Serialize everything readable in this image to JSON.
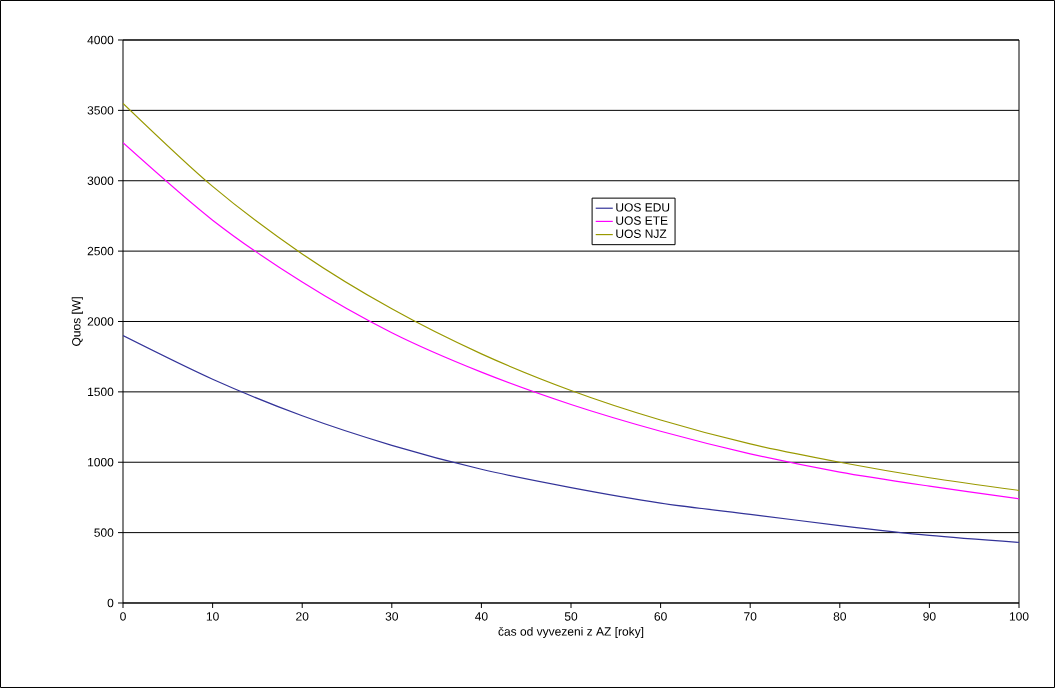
{
  "chart_data": {
    "type": "line",
    "xlabel": "čas od vyvezeni z AZ [roky]",
    "ylabel": "Quos [W]",
    "x": [
      0,
      10,
      20,
      30,
      40,
      50,
      60,
      70,
      80,
      90,
      100
    ],
    "series": [
      {
        "name": "UOS EDU",
        "color": "#333399",
        "values": [
          1900,
          1590,
          1330,
          1120,
          950,
          820,
          710,
          630,
          550,
          480,
          430
        ]
      },
      {
        "name": "UOS ETE",
        "color": "#ff00ff",
        "values": [
          3270,
          2720,
          2280,
          1920,
          1640,
          1410,
          1220,
          1060,
          930,
          830,
          740
        ]
      },
      {
        "name": "UOS NJZ",
        "color": "#999900",
        "values": [
          3550,
          2960,
          2480,
          2090,
          1770,
          1510,
          1300,
          1130,
          1000,
          890,
          800
        ]
      }
    ],
    "xlim": [
      0,
      100
    ],
    "ylim": [
      0,
      4000
    ],
    "xticks": [
      0,
      10,
      20,
      30,
      40,
      50,
      60,
      70,
      80,
      90,
      100
    ],
    "yticks": [
      0,
      500,
      1000,
      1500,
      2000,
      2500,
      3000,
      3500,
      4000
    ],
    "grid": "y",
    "legend": "right",
    "marker": "none",
    "line_style": "solid"
  }
}
